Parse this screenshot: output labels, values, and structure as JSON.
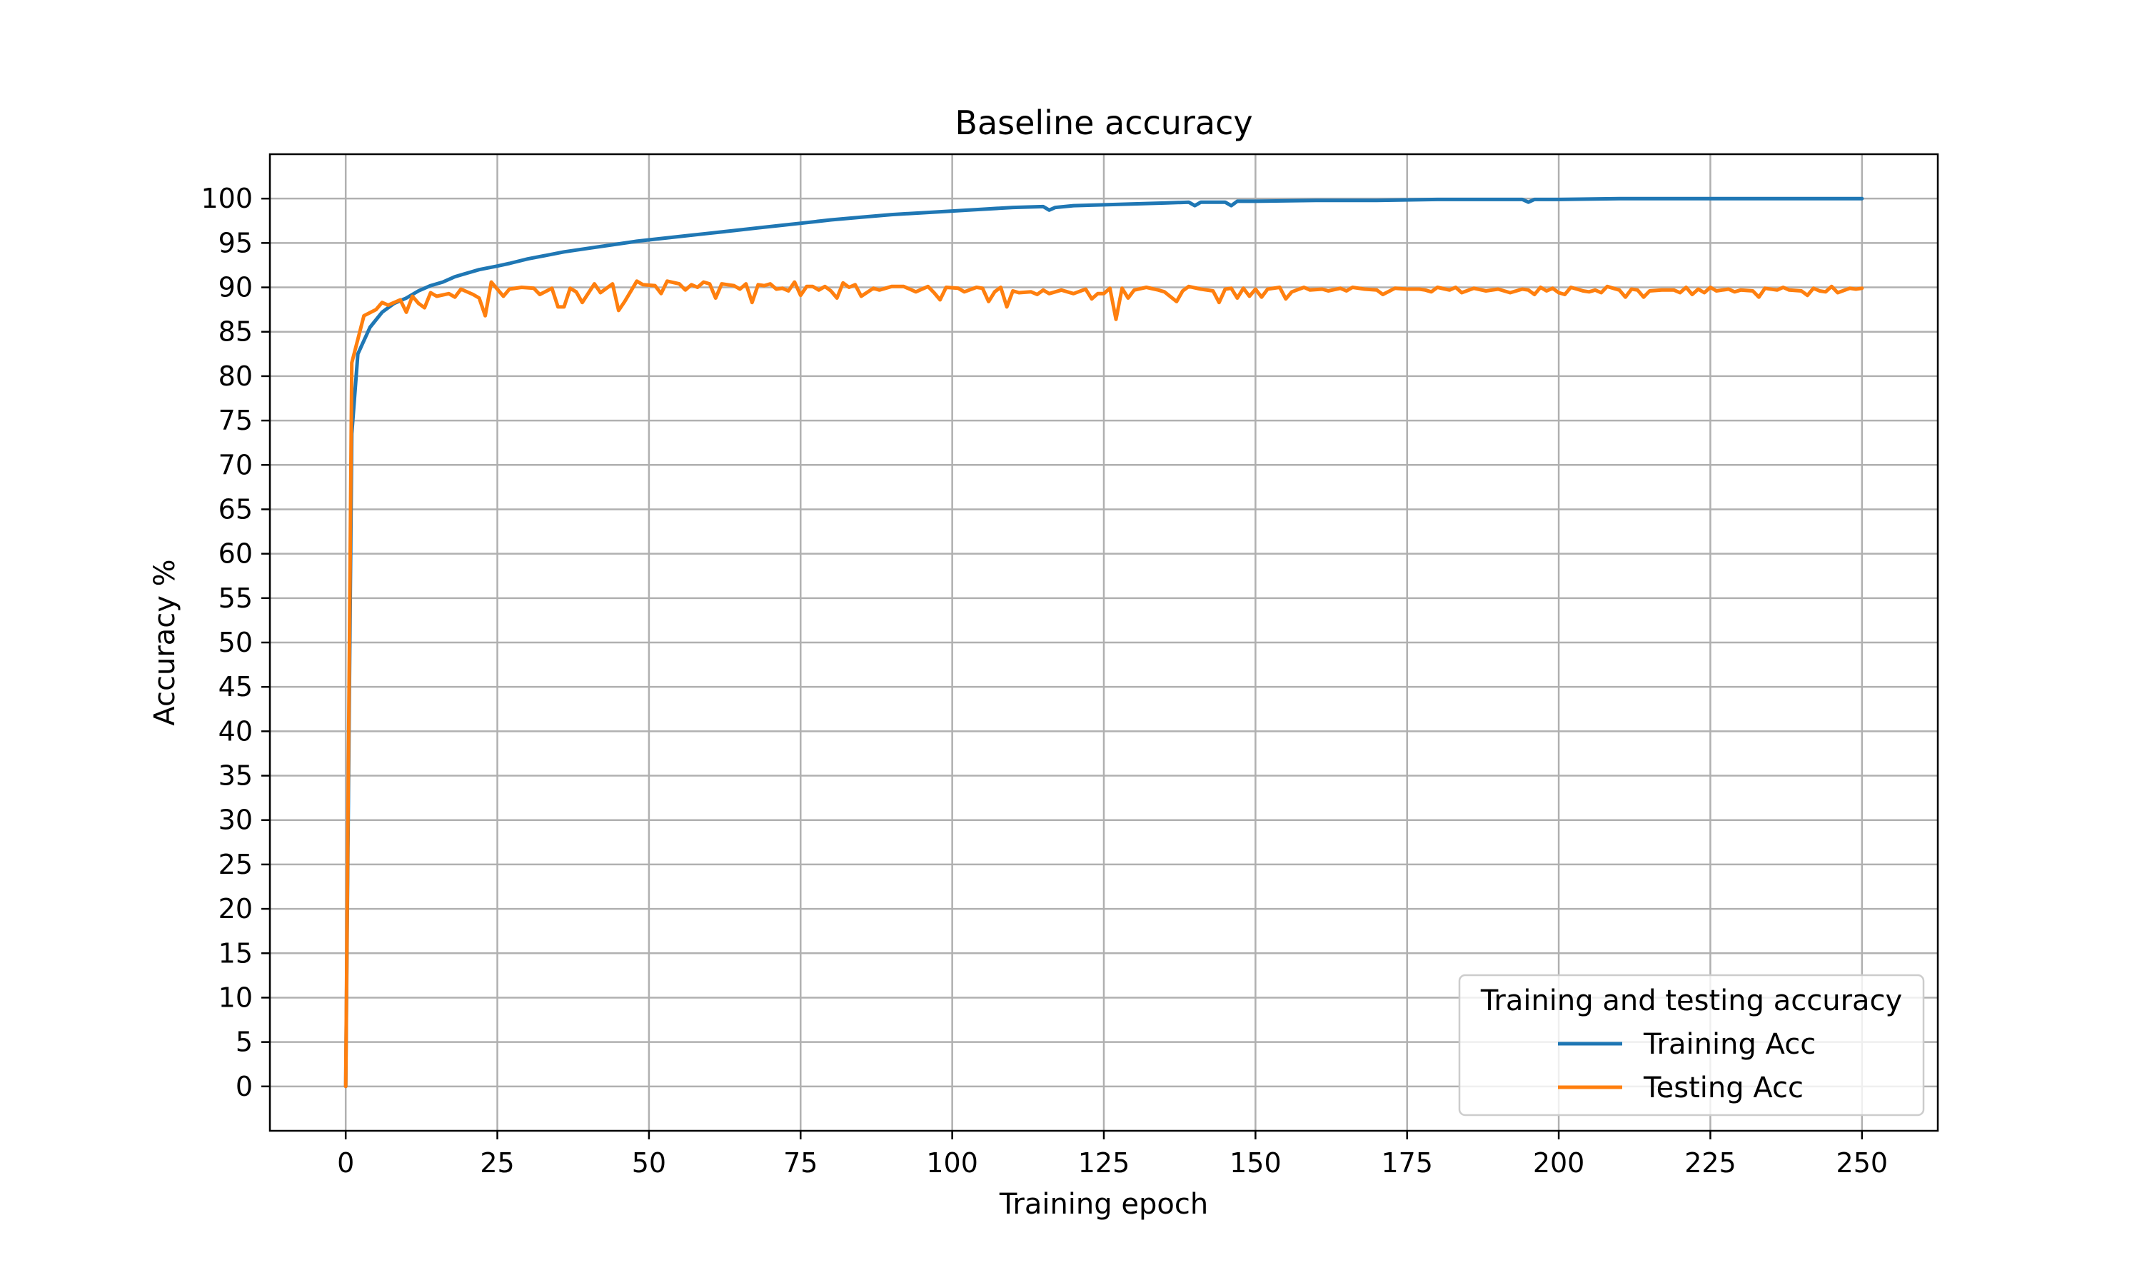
{
  "chart_data": {
    "type": "line",
    "title": "Baseline accuracy",
    "xlabel": "Training epoch",
    "ylabel": "Accuracy %",
    "xlim": [
      -12.5,
      262.5
    ],
    "ylim": [
      -5,
      105
    ],
    "xticks": [
      0,
      25,
      50,
      75,
      100,
      125,
      150,
      175,
      200,
      225,
      250
    ],
    "yticks": [
      0,
      5,
      10,
      15,
      20,
      25,
      30,
      35,
      40,
      45,
      50,
      55,
      60,
      65,
      70,
      75,
      80,
      85,
      90,
      95,
      100
    ],
    "grid": true,
    "legend": {
      "title": "Training and testing accuracy",
      "placement": "lower-right"
    },
    "series": [
      {
        "name": "Training Acc",
        "color": "#1f77b4",
        "points": [
          [
            0,
            0
          ],
          [
            1,
            73.5
          ],
          [
            2,
            82.5
          ],
          [
            4,
            85.5
          ],
          [
            6,
            87.2
          ],
          [
            8,
            88.2
          ],
          [
            10,
            88.8
          ],
          [
            12,
            89.6
          ],
          [
            14,
            90.2
          ],
          [
            16,
            90.6
          ],
          [
            18,
            91.2
          ],
          [
            20,
            91.6
          ],
          [
            22,
            92.0
          ],
          [
            25,
            92.4
          ],
          [
            27,
            92.7
          ],
          [
            30,
            93.2
          ],
          [
            33,
            93.6
          ],
          [
            36,
            94.0
          ],
          [
            40,
            94.4
          ],
          [
            44,
            94.8
          ],
          [
            48,
            95.2
          ],
          [
            52,
            95.5
          ],
          [
            56,
            95.8
          ],
          [
            60,
            96.1
          ],
          [
            64,
            96.4
          ],
          [
            68,
            96.7
          ],
          [
            72,
            97.0
          ],
          [
            76,
            97.3
          ],
          [
            80,
            97.6
          ],
          [
            85,
            97.9
          ],
          [
            90,
            98.2
          ],
          [
            95,
            98.4
          ],
          [
            100,
            98.6
          ],
          [
            105,
            98.8
          ],
          [
            110,
            99.0
          ],
          [
            115,
            99.1
          ],
          [
            116,
            98.7
          ],
          [
            117,
            99.0
          ],
          [
            120,
            99.2
          ],
          [
            125,
            99.3
          ],
          [
            130,
            99.4
          ],
          [
            135,
            99.5
          ],
          [
            139,
            99.6
          ],
          [
            140,
            99.2
          ],
          [
            141,
            99.6
          ],
          [
            145,
            99.6
          ],
          [
            146,
            99.2
          ],
          [
            147,
            99.7
          ],
          [
            150,
            99.7
          ],
          [
            160,
            99.8
          ],
          [
            170,
            99.8
          ],
          [
            180,
            99.9
          ],
          [
            190,
            99.9
          ],
          [
            194,
            99.9
          ],
          [
            195,
            99.6
          ],
          [
            196,
            99.9
          ],
          [
            200,
            99.9
          ],
          [
            210,
            100.0
          ],
          [
            220,
            100.0
          ],
          [
            230,
            100.0
          ],
          [
            240,
            100.0
          ],
          [
            250,
            100.0
          ]
        ]
      },
      {
        "name": "Testing Acc",
        "color": "#ff7f0e",
        "points": [
          [
            0,
            0
          ],
          [
            1,
            81.5
          ],
          [
            3,
            86.8
          ],
          [
            5,
            87.5
          ],
          [
            6,
            88.3
          ],
          [
            7,
            88.0
          ],
          [
            9,
            88.6
          ],
          [
            10,
            87.2
          ],
          [
            11,
            89.0
          ],
          [
            12,
            88.2
          ],
          [
            13,
            87.7
          ],
          [
            14,
            89.4
          ],
          [
            15,
            89.0
          ],
          [
            17,
            89.3
          ],
          [
            18,
            88.9
          ],
          [
            19,
            89.8
          ],
          [
            21,
            89.2
          ],
          [
            22,
            88.8
          ],
          [
            23,
            86.8
          ],
          [
            24,
            90.6
          ],
          [
            26,
            89.0
          ],
          [
            27,
            89.8
          ],
          [
            29,
            90.0
          ],
          [
            31,
            89.9
          ],
          [
            32,
            89.2
          ],
          [
            34,
            89.9
          ],
          [
            35,
            87.8
          ],
          [
            36,
            87.8
          ],
          [
            37,
            89.9
          ],
          [
            38,
            89.5
          ],
          [
            39,
            88.3
          ],
          [
            41,
            90.4
          ],
          [
            42,
            89.4
          ],
          [
            44,
            90.4
          ],
          [
            45,
            87.4
          ],
          [
            46,
            88.4
          ],
          [
            48,
            90.7
          ],
          [
            49,
            90.3
          ],
          [
            51,
            90.2
          ],
          [
            52,
            89.3
          ],
          [
            53,
            90.7
          ],
          [
            55,
            90.4
          ],
          [
            56,
            89.7
          ],
          [
            57,
            90.3
          ],
          [
            58,
            90.0
          ],
          [
            59,
            90.6
          ],
          [
            60,
            90.4
          ],
          [
            61,
            88.8
          ],
          [
            62,
            90.4
          ],
          [
            64,
            90.2
          ],
          [
            65,
            89.8
          ],
          [
            66,
            90.4
          ],
          [
            67,
            88.3
          ],
          [
            68,
            90.3
          ],
          [
            69,
            90.2
          ],
          [
            70,
            90.4
          ],
          [
            71,
            89.8
          ],
          [
            72,
            89.9
          ],
          [
            73,
            89.6
          ],
          [
            74,
            90.6
          ],
          [
            75,
            89.1
          ],
          [
            76,
            90.1
          ],
          [
            77,
            90.1
          ],
          [
            78,
            89.7
          ],
          [
            79,
            90.1
          ],
          [
            80,
            89.6
          ],
          [
            81,
            88.8
          ],
          [
            82,
            90.5
          ],
          [
            83,
            90.0
          ],
          [
            84,
            90.3
          ],
          [
            85,
            89.0
          ],
          [
            87,
            89.9
          ],
          [
            88,
            89.7
          ],
          [
            90,
            90.1
          ],
          [
            92,
            90.1
          ],
          [
            94,
            89.5
          ],
          [
            96,
            90.1
          ],
          [
            97,
            89.4
          ],
          [
            98,
            88.6
          ],
          [
            99,
            90.0
          ],
          [
            101,
            89.9
          ],
          [
            102,
            89.5
          ],
          [
            104,
            90.0
          ],
          [
            105,
            89.9
          ],
          [
            106,
            88.4
          ],
          [
            107,
            89.5
          ],
          [
            108,
            90.0
          ],
          [
            109,
            87.8
          ],
          [
            110,
            89.6
          ],
          [
            111,
            89.4
          ],
          [
            113,
            89.5
          ],
          [
            114,
            89.2
          ],
          [
            115,
            89.7
          ],
          [
            116,
            89.3
          ],
          [
            118,
            89.7
          ],
          [
            120,
            89.3
          ],
          [
            122,
            89.8
          ],
          [
            123,
            88.7
          ],
          [
            124,
            89.3
          ],
          [
            125,
            89.3
          ],
          [
            126,
            89.9
          ],
          [
            127,
            86.4
          ],
          [
            128,
            89.9
          ],
          [
            129,
            88.8
          ],
          [
            130,
            89.7
          ],
          [
            132,
            90.0
          ],
          [
            134,
            89.7
          ],
          [
            135,
            89.5
          ],
          [
            137,
            88.4
          ],
          [
            138,
            89.6
          ],
          [
            139,
            90.1
          ],
          [
            141,
            89.8
          ],
          [
            143,
            89.6
          ],
          [
            144,
            88.3
          ],
          [
            145,
            89.8
          ],
          [
            146,
            89.9
          ],
          [
            147,
            88.8
          ],
          [
            148,
            89.9
          ],
          [
            149,
            89.0
          ],
          [
            150,
            89.8
          ],
          [
            151,
            88.9
          ],
          [
            152,
            89.8
          ],
          [
            154,
            90.0
          ],
          [
            155,
            88.7
          ],
          [
            156,
            89.5
          ],
          [
            158,
            90.0
          ],
          [
            159,
            89.7
          ],
          [
            161,
            89.8
          ],
          [
            162,
            89.6
          ],
          [
            164,
            89.9
          ],
          [
            165,
            89.6
          ],
          [
            166,
            90.0
          ],
          [
            168,
            89.8
          ],
          [
            170,
            89.7
          ],
          [
            171,
            89.2
          ],
          [
            173,
            89.9
          ],
          [
            175,
            89.8
          ],
          [
            177,
            89.8
          ],
          [
            178,
            89.7
          ],
          [
            179,
            89.5
          ],
          [
            180,
            90.0
          ],
          [
            182,
            89.7
          ],
          [
            183,
            90.0
          ],
          [
            184,
            89.4
          ],
          [
            186,
            89.9
          ],
          [
            188,
            89.6
          ],
          [
            190,
            89.8
          ],
          [
            192,
            89.4
          ],
          [
            194,
            89.8
          ],
          [
            195,
            89.7
          ],
          [
            196,
            89.2
          ],
          [
            197,
            90.0
          ],
          [
            198,
            89.6
          ],
          [
            199,
            89.9
          ],
          [
            200,
            89.4
          ],
          [
            201,
            89.2
          ],
          [
            202,
            90.0
          ],
          [
            204,
            89.6
          ],
          [
            205,
            89.5
          ],
          [
            206,
            89.7
          ],
          [
            207,
            89.4
          ],
          [
            208,
            90.1
          ],
          [
            210,
            89.7
          ],
          [
            211,
            88.9
          ],
          [
            212,
            89.8
          ],
          [
            213,
            89.7
          ],
          [
            214,
            88.9
          ],
          [
            215,
            89.6
          ],
          [
            217,
            89.7
          ],
          [
            219,
            89.7
          ],
          [
            220,
            89.4
          ],
          [
            221,
            90.0
          ],
          [
            222,
            89.2
          ],
          [
            223,
            89.8
          ],
          [
            224,
            89.4
          ],
          [
            225,
            90.0
          ],
          [
            226,
            89.6
          ],
          [
            228,
            89.8
          ],
          [
            229,
            89.5
          ],
          [
            230,
            89.7
          ],
          [
            232,
            89.6
          ],
          [
            233,
            88.9
          ],
          [
            234,
            89.9
          ],
          [
            236,
            89.7
          ],
          [
            237,
            90.0
          ],
          [
            238,
            89.7
          ],
          [
            240,
            89.6
          ],
          [
            241,
            89.1
          ],
          [
            242,
            89.9
          ],
          [
            243,
            89.6
          ],
          [
            244,
            89.5
          ],
          [
            245,
            90.1
          ],
          [
            246,
            89.4
          ],
          [
            248,
            89.9
          ],
          [
            249,
            89.8
          ],
          [
            250,
            89.9
          ]
        ]
      }
    ]
  }
}
